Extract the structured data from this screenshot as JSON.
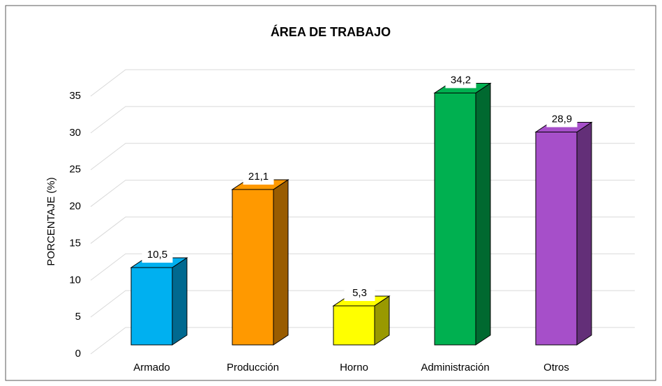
{
  "chart_data": {
    "type": "bar3d",
    "title": "ÁREA DE TRABAJO",
    "y_label": "PORCENTAJE (%)",
    "categories": [
      "Armado",
      "Producción",
      "Horno",
      "Administración",
      "Otros"
    ],
    "values": [
      10.5,
      21.1,
      5.3,
      34.2,
      28.9
    ],
    "value_labels": [
      "10,5",
      "21,1",
      "5,3",
      "34,2",
      "28,9"
    ],
    "colors": [
      "#00b0f0",
      "#ff9900",
      "#ffff00",
      "#00b050",
      "#a64fc9"
    ],
    "ylim": [
      0,
      35
    ],
    "yticks": [
      0,
      5,
      10,
      15,
      20,
      25,
      30,
      35
    ],
    "grid": true
  }
}
